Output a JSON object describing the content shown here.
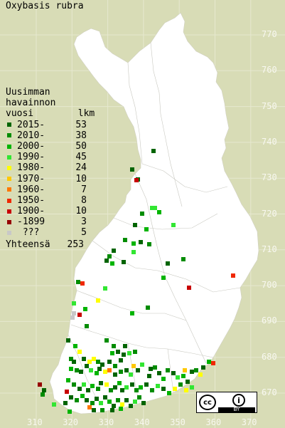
{
  "title": "Oxybasis rubra",
  "legend": {
    "header": [
      "Uusimman",
      "havainnon",
      "vuosi        lkm"
    ],
    "entries": [
      {
        "label": "2015-",
        "count": "53",
        "color": "#006400"
      },
      {
        "label": "2010-",
        "count": "38",
        "color": "#008c00"
      },
      {
        "label": "2000-",
        "count": "50",
        "color": "#00b400"
      },
      {
        "label": "1990-",
        "count": "45",
        "color": "#32e632"
      },
      {
        "label": "1980-",
        "count": "24",
        "color": "#ffff00"
      },
      {
        "label": "1970-",
        "count": "10",
        "color": "#ffc800"
      },
      {
        "label": "1960-",
        "count": "7",
        "color": "#ff7800"
      },
      {
        "label": "1950-",
        "count": "8",
        "color": "#f02800"
      },
      {
        "label": "1900-",
        "count": "10",
        "color": "#c80000"
      },
      {
        "label": "-1899",
        "count": "3",
        "color": "#960000"
      },
      {
        "label": " ???",
        "count": "5",
        "color": "#c8c8c8"
      }
    ],
    "total_label": "Yhteensä",
    "total_count": "253"
  },
  "grid": {
    "y_labels": [
      "770",
      "760",
      "750",
      "740",
      "730",
      "720",
      "710",
      "700",
      "690",
      "680",
      "670"
    ],
    "x_labels": [
      "310",
      "320",
      "330",
      "340",
      "350",
      "360",
      "370"
    ]
  },
  "license": {
    "cc": "cc",
    "info": "i",
    "by": "BY"
  }
}
